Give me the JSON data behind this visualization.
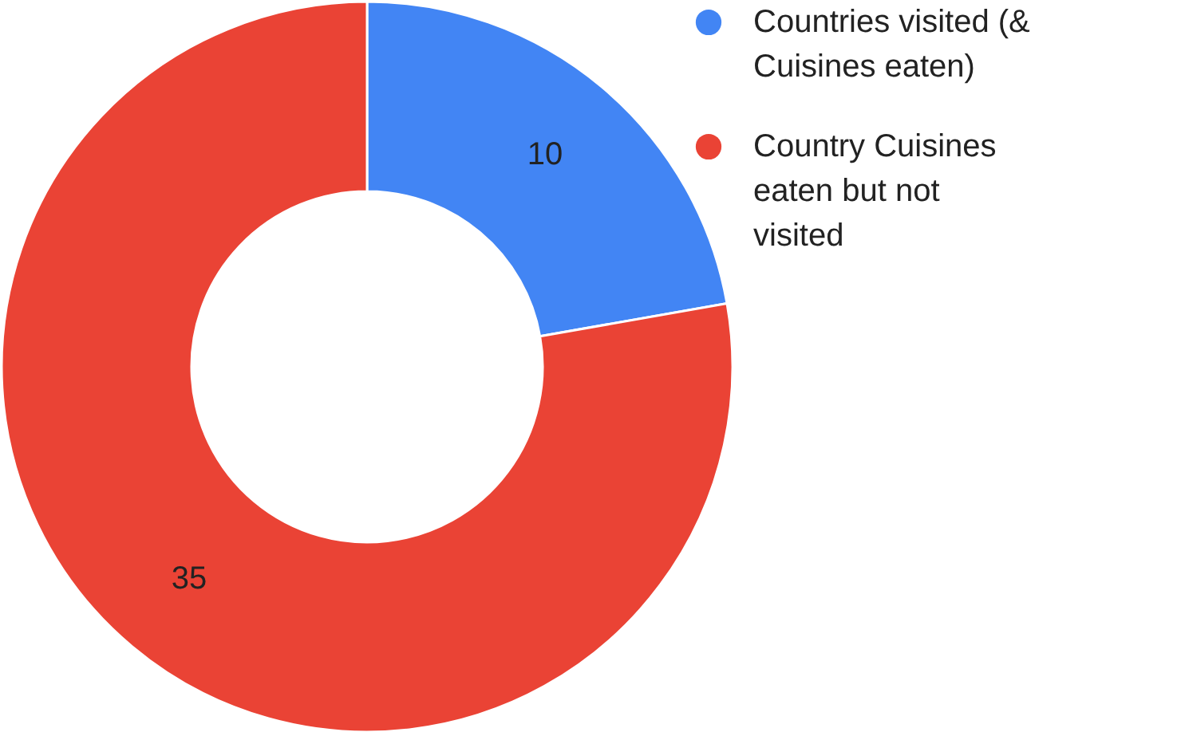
{
  "chart_data": {
    "type": "donut",
    "categories": [
      "Countries visited (& Cuisines eaten)",
      "Country Cuisines eaten but not visited"
    ],
    "values": [
      10,
      35
    ],
    "colors": [
      "#4285f4",
      "#ea4335"
    ],
    "data_labels": true,
    "legend": "top right"
  }
}
